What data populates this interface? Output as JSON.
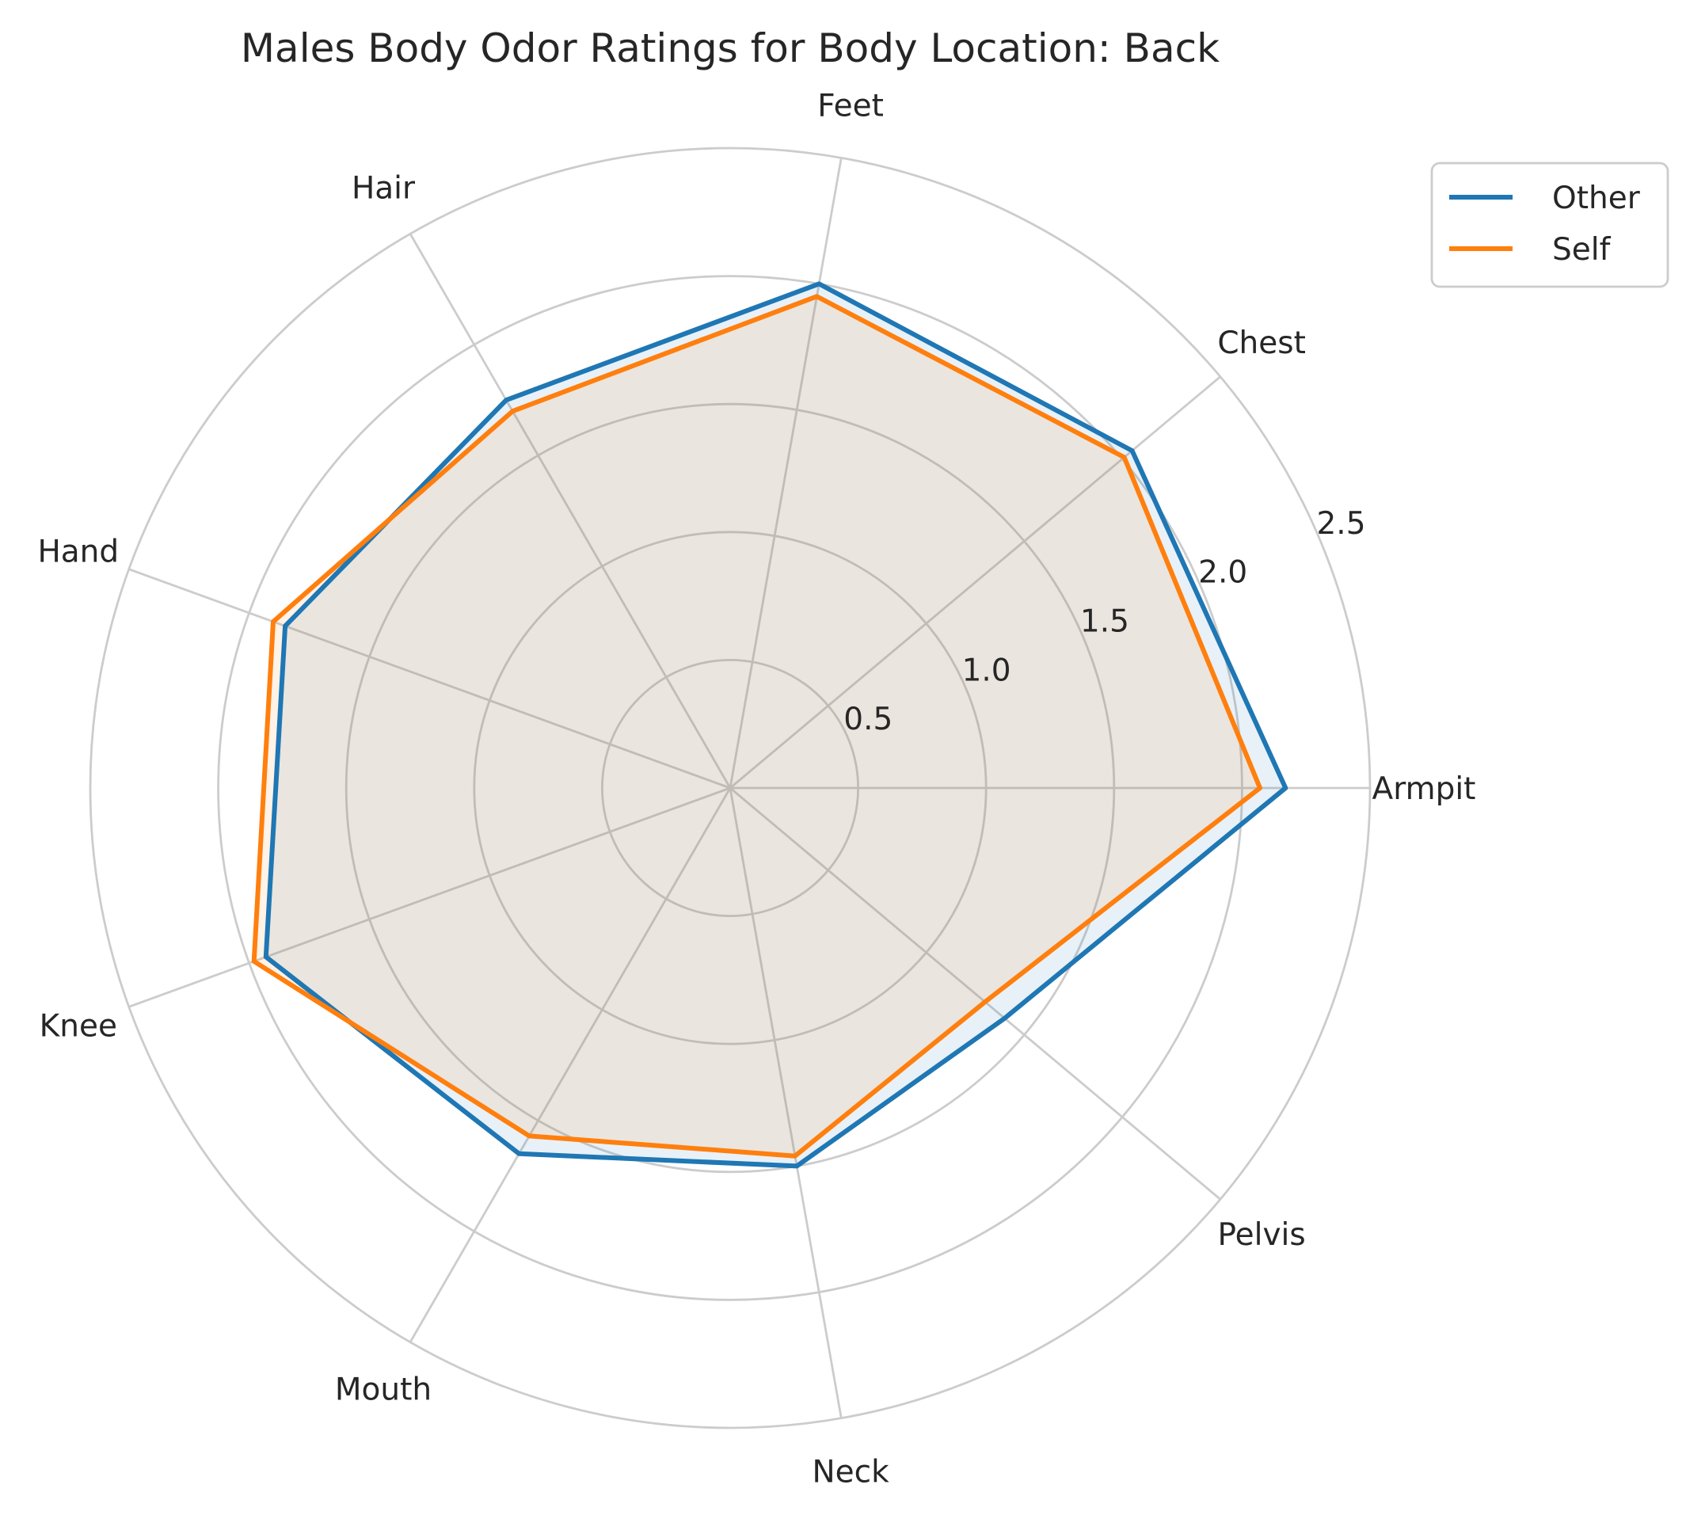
{
  "chart_data": {
    "type": "radar",
    "title": "Males Body Odor Ratings for Body Location: Back",
    "categories": [
      "Armpit",
      "Chest",
      "Feet",
      "Hair",
      "Hand",
      "Knee",
      "Mouth",
      "Neck",
      "Pelvis"
    ],
    "series": [
      {
        "name": "Other",
        "color": "#1f77b4",
        "values": [
          2.17,
          2.05,
          2.0,
          1.75,
          1.85,
          1.93,
          1.65,
          1.5,
          1.4
        ]
      },
      {
        "name": "Self",
        "color": "#ff7f0e",
        "values": [
          2.07,
          2.01,
          1.95,
          1.7,
          1.9,
          1.98,
          1.57,
          1.46,
          1.3
        ]
      }
    ],
    "r_ticks": [
      "0.5",
      "1.0",
      "1.5",
      "2.0",
      "2.5"
    ],
    "r_tick_values": [
      0.5,
      1.0,
      1.5,
      2.0,
      2.5
    ],
    "rlim": [
      0,
      2.5
    ],
    "grid": true,
    "legend_placement": "top-right"
  },
  "colors": {
    "grid": "#cccccc",
    "text": "#262626"
  }
}
